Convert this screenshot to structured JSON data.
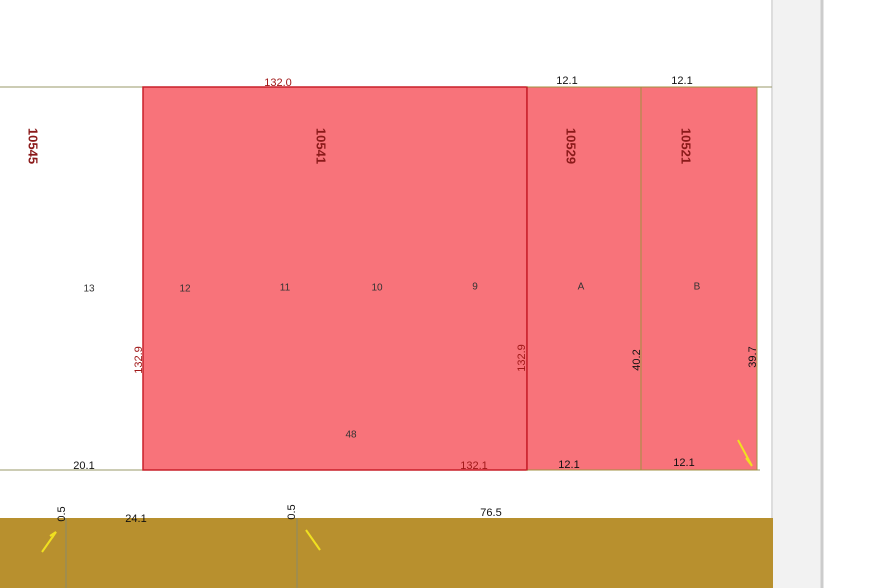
{
  "parcel_ids": [
    "10545",
    "10541",
    "10529",
    "10521"
  ],
  "lot_labels": [
    "13",
    "12",
    "11",
    "10",
    "9",
    "A",
    "B",
    "48"
  ],
  "dimensions": {
    "top_main": "132.0",
    "top_a": "12.1",
    "top_b": "12.1",
    "left_main": "132.9",
    "right_main": "132.9",
    "side_a": "40.2",
    "side_b": "39.7",
    "bottom_left": "20.1",
    "bottom_main": "132.1",
    "bottom_a": "12.1",
    "bottom_b": "12.1",
    "road_a": "0.5",
    "road_b": "24.1",
    "road_c": "0.5",
    "road_d": "76.5"
  }
}
